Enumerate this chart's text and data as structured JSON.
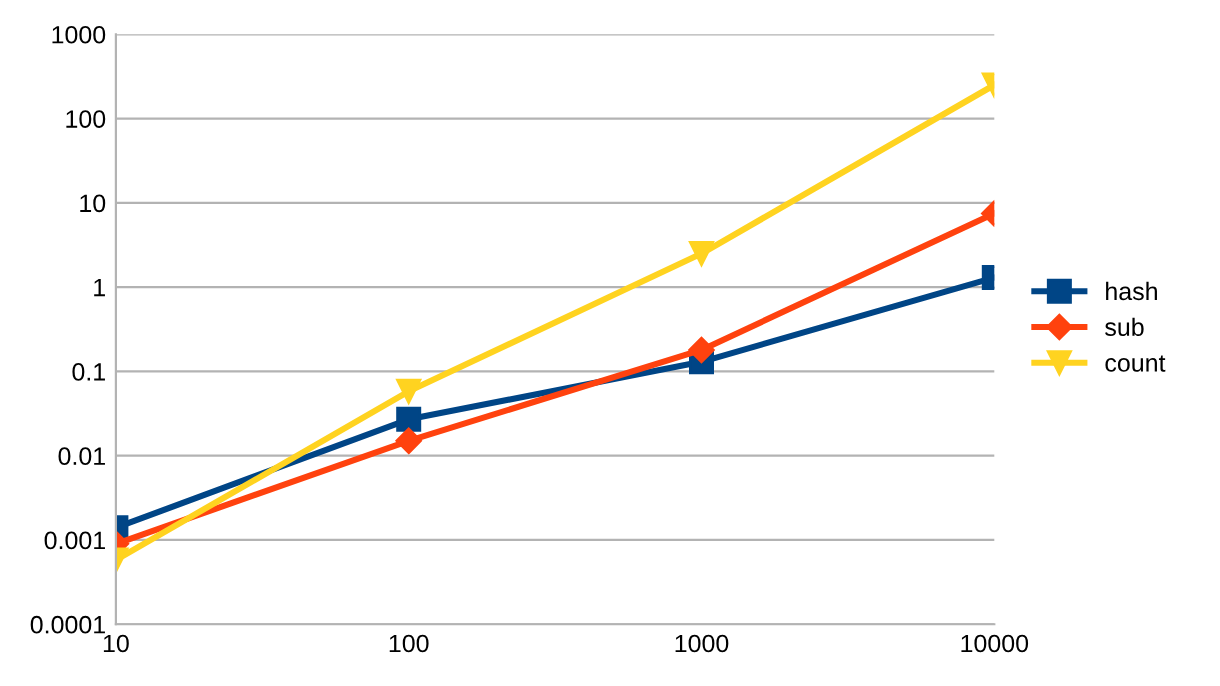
{
  "chart_data": {
    "type": "line",
    "log": "xy",
    "x": [
      10,
      100,
      1000,
      10000
    ],
    "xlim": [
      10,
      10000
    ],
    "xticks": [
      10,
      100,
      1000,
      10000
    ],
    "ylim": [
      0.0001,
      1000
    ],
    "yticks": [
      0.0001,
      0.001,
      0.01,
      0.1,
      1,
      10,
      100,
      1000
    ],
    "grid": "y",
    "legend": "right",
    "series": [
      {
        "name": "hash",
        "color": "#004586",
        "marker": "square",
        "values": [
          0.0014,
          0.027,
          0.13,
          1.3
        ]
      },
      {
        "name": "sub",
        "color": "#ff420e",
        "marker": "diamond",
        "values": [
          0.0009,
          0.015,
          0.18,
          7.5
        ]
      },
      {
        "name": "count",
        "color": "#ffd320",
        "marker": "triangle",
        "values": [
          0.00058,
          0.058,
          2.5,
          250
        ]
      }
    ]
  }
}
